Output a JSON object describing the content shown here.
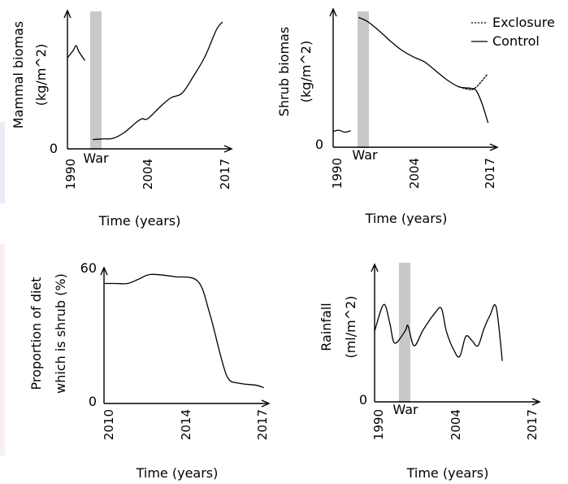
{
  "colors": {
    "line": "#000000",
    "war_band": "#c8c8c8",
    "background": "#ffffff"
  },
  "chart_data": [
    {
      "id": "mammal",
      "type": "line",
      "ylabel": [
        "Mammal biomas",
        "(kg/m^2)"
      ],
      "xlabel": "Time (years)",
      "y_tick_labels": [
        "0"
      ],
      "x_tick_labels": [
        "1990",
        "2004",
        "2017"
      ],
      "xlim": [
        1990,
        2018.5
      ],
      "ylim": [
        0,
        10
      ],
      "band": {
        "label": "War",
        "x": [
          1993,
          1994.5
        ]
      },
      "series": [
        {
          "values": [
            [
              1990,
              7.0
            ],
            [
              1991,
              7.6
            ],
            [
              1991.5,
              8.0
            ],
            [
              1992,
              7.5
            ],
            [
              1993,
              6.8
            ]
          ]
        },
        {
          "values": [
            [
              1994.5,
              0.3
            ],
            [
              1996,
              0.35
            ],
            [
              1998,
              0.4
            ],
            [
              2000,
              0.9
            ],
            [
              2002,
              1.7
            ],
            [
              2003,
              2.0
            ],
            [
              2004,
              2.0
            ],
            [
              2006,
              2.9
            ],
            [
              2008,
              3.7
            ],
            [
              2010,
              4.1
            ],
            [
              2012,
              5.5
            ],
            [
              2014,
              7.1
            ],
            [
              2016,
              9.3
            ],
            [
              2017,
              9.9
            ]
          ]
        }
      ]
    },
    {
      "id": "shrub",
      "type": "line",
      "ylabel": [
        "Shrub biomas",
        "(kg/m^2)"
      ],
      "xlabel": "Time (years)",
      "y_tick_labels": [
        "0"
      ],
      "x_tick_labels": [
        "1990",
        "2004",
        "2017"
      ],
      "xlim": [
        1990,
        2018.5
      ],
      "ylim": [
        0,
        10
      ],
      "band": {
        "label": "War",
        "x": [
          1993,
          1994.5
        ]
      },
      "legend": {
        "position": "top-right",
        "entries": [
          "Exclosure",
          "Control"
        ]
      },
      "series": [
        {
          "name": "Control",
          "values": [
            [
              1990,
              1.2
            ],
            [
              1991,
              1.3
            ],
            [
              1992,
              1.15
            ],
            [
              1993,
              1.25
            ]
          ]
        },
        {
          "name": "Control",
          "values": [
            [
              1994.5,
              9.9
            ],
            [
              1996,
              9.6
            ],
            [
              1998,
              8.9
            ],
            [
              2000,
              8.1
            ],
            [
              2002,
              7.4
            ],
            [
              2004,
              6.9
            ],
            [
              2006,
              6.5
            ],
            [
              2008,
              5.8
            ],
            [
              2010,
              5.1
            ],
            [
              2012,
              4.6
            ],
            [
              2014,
              4.5
            ],
            [
              2015,
              4.3
            ],
            [
              2016,
              3.3
            ],
            [
              2017,
              1.9
            ]
          ]
        },
        {
          "name": "Exclosure",
          "values": [
            [
              2012,
              4.6
            ],
            [
              2014,
              4.4
            ],
            [
              2015,
              4.6
            ],
            [
              2016,
              5.1
            ],
            [
              2017,
              5.6
            ]
          ]
        }
      ]
    },
    {
      "id": "diet",
      "type": "line",
      "ylabel": [
        "Proportion of diet",
        "which is shrub (%)"
      ],
      "xlabel": "Time (years)",
      "y_tick_labels": [
        "0",
        "60"
      ],
      "x_tick_labels": [
        "2010",
        "2014",
        "2017"
      ],
      "xlim": [
        2010,
        2017
      ],
      "ylim": [
        0,
        60
      ],
      "series": [
        {
          "values": [
            [
              2010,
              53
            ],
            [
              2010.5,
              53
            ],
            [
              2011,
              53
            ],
            [
              2011.5,
              55
            ],
            [
              2012,
              57
            ],
            [
              2013,
              56
            ],
            [
              2014,
              54
            ],
            [
              2014.5,
              40
            ],
            [
              2015,
              20
            ],
            [
              2015.3,
              11
            ],
            [
              2015.7,
              9
            ],
            [
              2016.5,
              8
            ],
            [
              2016.8,
              7
            ]
          ]
        }
      ]
    },
    {
      "id": "rainfall",
      "type": "line",
      "ylabel": [
        "Rainfall",
        "(ml/m^2)"
      ],
      "xlabel": "Time (years)",
      "y_tick_labels": [
        "0"
      ],
      "x_tick_labels": [
        "1990",
        "2004",
        "2017"
      ],
      "xlim": [
        1990,
        2017
      ],
      "ylim": [
        0,
        10
      ],
      "band": {
        "label": "War",
        "x": [
          1992.5,
          1994
        ]
      },
      "series": [
        {
          "values": [
            [
              1990,
              5.3
            ],
            [
              1991.5,
              7.3
            ],
            [
              1992.5,
              5.9
            ],
            [
              1993.3,
              4.4
            ],
            [
              1995,
              5.3
            ],
            [
              1995.5,
              5.7
            ],
            [
              1996.5,
              4.2
            ],
            [
              1998,
              5.4
            ],
            [
              2000,
              6.7
            ],
            [
              2001,
              7.0
            ],
            [
              2001.8,
              5.3
            ],
            [
              2003,
              3.9
            ],
            [
              2004,
              3.4
            ],
            [
              2005,
              4.9
            ],
            [
              2006,
              4.6
            ],
            [
              2007,
              4.2
            ],
            [
              2008,
              5.5
            ],
            [
              2009,
              6.5
            ],
            [
              2010,
              7.1
            ],
            [
              2011,
              3.1
            ]
          ]
        }
      ]
    }
  ]
}
